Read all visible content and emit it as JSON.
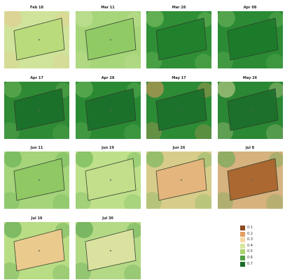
{
  "figure": {
    "panels": [
      {
        "date": "Feb 18",
        "field_color": "#b9db7a",
        "base_color": "#cfe39a",
        "tint": "#e7c98f"
      },
      {
        "date": "Mar 11",
        "field_color": "#8fca63",
        "base_color": "#a7d57a",
        "tint": "#c9e39b"
      },
      {
        "date": "Mar 28",
        "field_color": "#1f7f2c",
        "base_color": "#2f8f36",
        "tint": "#8cc96b"
      },
      {
        "date": "Apr 08",
        "field_color": "#1b7a2a",
        "base_color": "#2b8b35",
        "tint": "#74ba5f"
      },
      {
        "date": "Apr 17",
        "field_color": "#1a6f2a",
        "base_color": "#2f8a35",
        "tint": "#6fb75b"
      },
      {
        "date": "Apr 28",
        "field_color": "#1a6f2a",
        "base_color": "#2a8a34",
        "tint": "#74bb60"
      },
      {
        "date": "May 17",
        "field_color": "#1b6f2b",
        "base_color": "#2c8b35",
        "tint": "#e59d61"
      },
      {
        "date": "May 26",
        "field_color": "#1b6f2b",
        "base_color": "#2a8733",
        "tint": "#d8d89a"
      },
      {
        "date": "Jun 11",
        "field_color": "#8fc763",
        "base_color": "#a5d47a",
        "tint": "#5eac4f"
      },
      {
        "date": "Jun 19",
        "field_color": "#c5df8b",
        "base_color": "#bfe08b",
        "tint": "#5fae4f"
      },
      {
        "date": "Jun 26",
        "field_color": "#e6b47b",
        "base_color": "#d8cc8b",
        "tint": "#62b254"
      },
      {
        "date": "Jul 8",
        "field_color": "#a8622b",
        "base_color": "#d6b27f",
        "tint": "#5aa84d"
      },
      {
        "date": "Jul 19",
        "field_color": "#f0c98e",
        "base_color": "#b9dd84",
        "tint": "#4f9e48"
      },
      {
        "date": "Jul 30",
        "field_color": "#dfe3a3",
        "base_color": "#b3d985",
        "tint": "#4a9b45"
      }
    ],
    "legend": [
      {
        "label": "0.1",
        "color": "#8b4a1f"
      },
      {
        "label": "0.2",
        "color": "#e39f62"
      },
      {
        "label": "0.3",
        "color": "#f6d9a4"
      },
      {
        "label": "0.4",
        "color": "#d9e7a0"
      },
      {
        "label": "0.5",
        "color": "#a9d46e"
      },
      {
        "label": "0.6",
        "color": "#4f9f42"
      },
      {
        "label": "0.7",
        "color": "#1a6a2b"
      }
    ]
  }
}
